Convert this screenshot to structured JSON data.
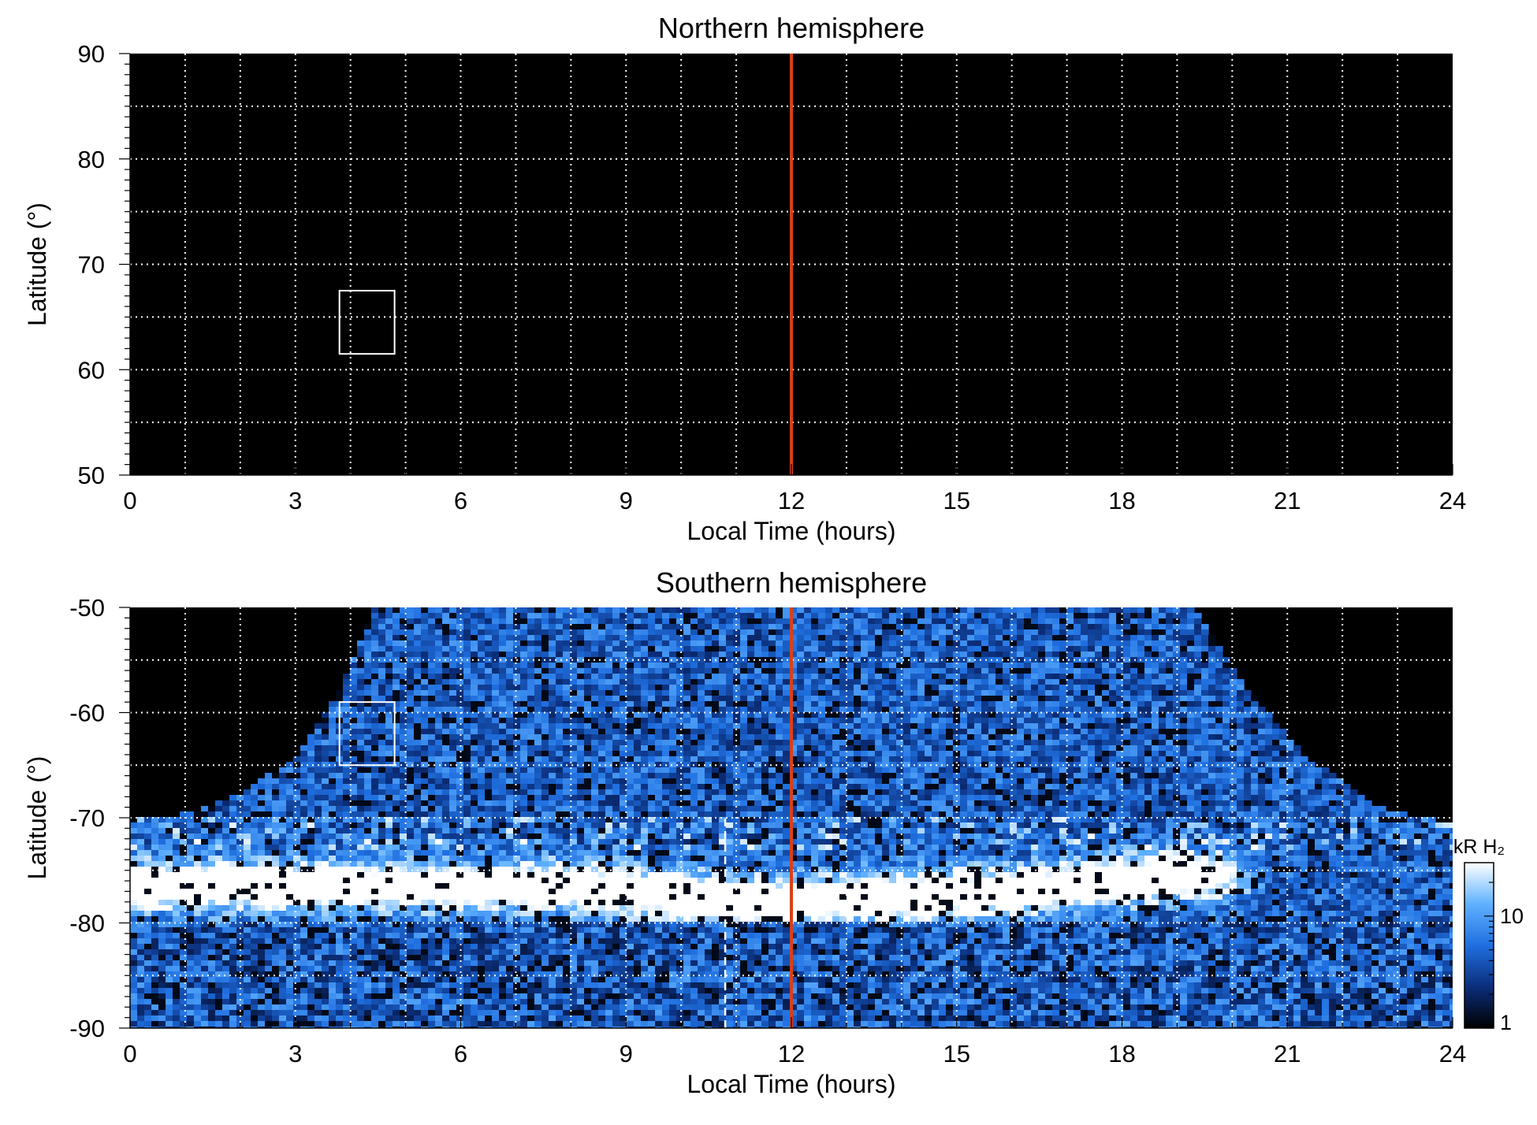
{
  "chart_data": [
    {
      "type": "heatmap",
      "title": "Northern hemisphere",
      "xlabel": "Local Time (hours)",
      "ylabel": "Latitude (°)",
      "xlim": [
        0,
        24
      ],
      "ylim": [
        50,
        90
      ],
      "xticks": [
        "0",
        "3",
        "6",
        "9",
        "12",
        "15",
        "18",
        "21",
        "24"
      ],
      "yticks": [
        "50",
        "60",
        "70",
        "80",
        "90"
      ],
      "xtick_values": [
        0,
        3,
        6,
        9,
        12,
        15,
        18,
        21,
        24
      ],
      "ytick_values": [
        50,
        60,
        70,
        80,
        90
      ],
      "grid": true,
      "background": "#000000",
      "noon_line": {
        "x": 12,
        "color": "#d8401a"
      },
      "box": {
        "x": [
          3.8,
          4.8
        ],
        "y": [
          61.5,
          67.5
        ]
      },
      "coverage": "none"
    },
    {
      "type": "heatmap",
      "title": "Southern hemisphere",
      "xlabel": "Local Time (hours)",
      "ylabel": "Latitude (°)",
      "xlim": [
        0,
        24
      ],
      "ylim": [
        -90,
        -50
      ],
      "xticks": [
        "0",
        "3",
        "6",
        "9",
        "12",
        "15",
        "18",
        "21",
        "24"
      ],
      "yticks": [
        "-90",
        "-80",
        "-70",
        "-60",
        "-50"
      ],
      "xtick_values": [
        0,
        3,
        6,
        9,
        12,
        15,
        18,
        21,
        24
      ],
      "ytick_values": [
        -90,
        -80,
        -70,
        -60,
        -50
      ],
      "grid": true,
      "background": "#000000",
      "noon_line": {
        "x": 12,
        "color": "#d8401a"
      },
      "dashed_line": {
        "x": 10.8,
        "y": [
          -90,
          -70
        ]
      },
      "box": {
        "x": [
          3.8,
          4.8
        ],
        "y": [
          -65,
          -59
        ]
      },
      "coverage_edge": [
        {
          "x": 0,
          "y": -70.3
        },
        {
          "x": 1,
          "y": -69.6
        },
        {
          "x": 2,
          "y": -67.8
        },
        {
          "x": 3,
          "y": -64.2
        },
        {
          "x": 3.8,
          "y": -58
        },
        {
          "x": 4.3,
          "y": -52
        },
        {
          "x": 4.4,
          "y": -50
        },
        {
          "x": 19.3,
          "y": -50
        },
        {
          "x": 19.7,
          "y": -53
        },
        {
          "x": 20.3,
          "y": -58
        },
        {
          "x": 21.3,
          "y": -64
        },
        {
          "x": 22.5,
          "y": -68.5
        },
        {
          "x": 23.3,
          "y": -70
        },
        {
          "x": 24,
          "y": -70.3
        }
      ],
      "auroral_oval": [
        {
          "x": 0,
          "y": -76.5
        },
        {
          "x": 3,
          "y": -76.5
        },
        {
          "x": 6,
          "y": -76.5
        },
        {
          "x": 8,
          "y": -76.5
        },
        {
          "x": 10,
          "y": -77.5
        },
        {
          "x": 12,
          "y": -78
        },
        {
          "x": 14,
          "y": -77.5
        },
        {
          "x": 16,
          "y": -77
        },
        {
          "x": 18,
          "y": -76
        },
        {
          "x": 19,
          "y": -75.5
        }
      ],
      "colorbar": {
        "label": "kR H₂",
        "scale": "log",
        "range": [
          1,
          30
        ],
        "ticks": [
          "1",
          "10"
        ],
        "tick_values": [
          1,
          10
        ],
        "colors": [
          "#000000",
          "#0b2e7a",
          "#1f6fe0",
          "#5fb1ff",
          "#ffffff"
        ]
      }
    }
  ]
}
